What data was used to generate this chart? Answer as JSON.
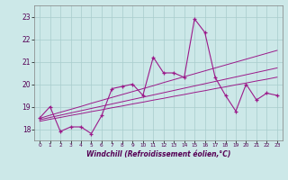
{
  "x": [
    0,
    1,
    2,
    3,
    4,
    5,
    6,
    7,
    8,
    9,
    10,
    11,
    12,
    13,
    14,
    15,
    16,
    17,
    18,
    19,
    20,
    21,
    22,
    23
  ],
  "y_main": [
    18.5,
    19.0,
    17.9,
    18.1,
    18.1,
    17.8,
    18.6,
    19.8,
    19.9,
    20.0,
    19.5,
    21.2,
    20.5,
    20.5,
    20.3,
    22.9,
    22.3,
    20.3,
    19.5,
    18.8,
    20.0,
    19.3,
    19.6,
    19.5
  ],
  "y_line1": [
    18.48,
    18.62,
    18.75,
    18.88,
    19.01,
    19.15,
    19.28,
    19.41,
    19.54,
    19.67,
    19.8,
    19.93,
    20.07,
    20.2,
    20.33,
    20.46,
    20.59,
    20.72,
    20.85,
    20.98,
    21.11,
    21.24,
    21.37,
    21.5
  ],
  "y_line2": [
    18.42,
    18.52,
    18.62,
    18.72,
    18.82,
    18.92,
    19.02,
    19.12,
    19.22,
    19.32,
    19.42,
    19.52,
    19.62,
    19.72,
    19.82,
    19.92,
    20.02,
    20.12,
    20.22,
    20.32,
    20.42,
    20.52,
    20.62,
    20.72
  ],
  "y_line3": [
    18.35,
    18.44,
    18.52,
    18.61,
    18.69,
    18.78,
    18.86,
    18.95,
    19.03,
    19.12,
    19.2,
    19.29,
    19.37,
    19.46,
    19.54,
    19.63,
    19.71,
    19.8,
    19.88,
    19.97,
    20.05,
    20.14,
    20.22,
    20.31
  ],
  "line_color": "#9b1a8a",
  "bg_color": "#cce8e8",
  "grid_color": "#a8cccc",
  "ylim": [
    17.5,
    23.5
  ],
  "xlim": [
    -0.5,
    23.5
  ],
  "yticks": [
    18,
    19,
    20,
    21,
    22,
    23
  ],
  "xtick_labels": [
    "0",
    "1",
    "2",
    "3",
    "4",
    "5",
    "6",
    "7",
    "8",
    "9",
    "10",
    "11",
    "12",
    "13",
    "14",
    "15",
    "16",
    "17",
    "18",
    "19",
    "20",
    "21",
    "22",
    "23"
  ],
  "xlabel": "Windchill (Refroidissement éolien,°C)"
}
